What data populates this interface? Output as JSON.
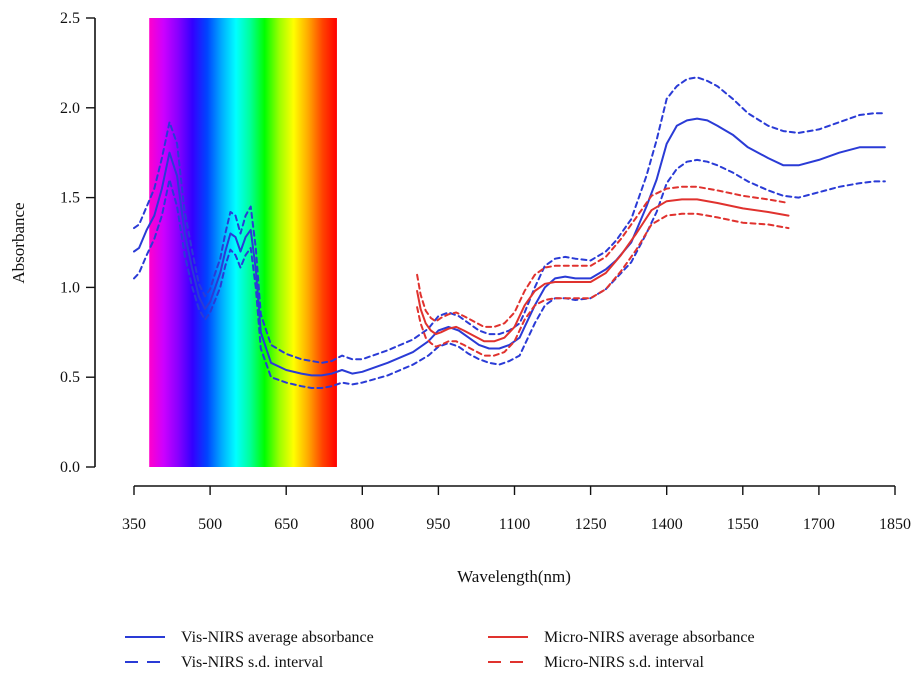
{
  "chart_data": {
    "type": "line",
    "xlabel": "Wavelength(nm)",
    "ylabel": "Absorbance",
    "xlim": [
      350,
      1850
    ],
    "ylim": [
      0,
      2.5
    ],
    "x_ticks": [
      350,
      500,
      650,
      800,
      950,
      1100,
      1250,
      1400,
      1550,
      1700,
      1850
    ],
    "y_ticks": [
      0.0,
      0.5,
      1.0,
      1.5,
      2.0,
      2.5
    ],
    "y_tick_labels": [
      "0.0",
      "0.5",
      "1.0",
      "1.5",
      "2.0",
      "2.5"
    ],
    "grid": false,
    "visible_spectrum_band": {
      "x_range": [
        380,
        750
      ],
      "colors": [
        "#ff00cc",
        "#cc00ff",
        "#8800ff",
        "#3300ff",
        "#0044ff",
        "#00aaff",
        "#00ffff",
        "#00ff99",
        "#00ff00",
        "#99ff00",
        "#ffff00",
        "#ffaa00",
        "#ff4400",
        "#ff0000"
      ]
    },
    "series": [
      {
        "name": "Vis-NIRS average absorbance",
        "color": "#2a3bd6",
        "dash": "solid",
        "x": [
          350,
          360,
          375,
          390,
          405,
          420,
          435,
          450,
          465,
          478,
          490,
          500,
          510,
          520,
          530,
          540,
          550,
          560,
          570,
          580,
          590,
          600,
          620,
          650,
          680,
          700,
          720,
          740,
          760,
          780,
          800,
          850,
          900,
          930,
          950,
          970,
          990,
          1010,
          1030,
          1050,
          1070,
          1090,
          1110,
          1120,
          1140,
          1160,
          1180,
          1200,
          1220,
          1250,
          1280,
          1300,
          1330,
          1360,
          1380,
          1400,
          1420,
          1440,
          1460,
          1480,
          1500,
          1530,
          1560,
          1600,
          1630,
          1660,
          1700,
          1740,
          1780,
          1810,
          1830
        ],
        "y": [
          1.2,
          1.22,
          1.32,
          1.4,
          1.55,
          1.75,
          1.62,
          1.3,
          1.1,
          0.95,
          0.88,
          0.92,
          1.0,
          1.08,
          1.2,
          1.3,
          1.28,
          1.2,
          1.28,
          1.32,
          1.1,
          0.75,
          0.58,
          0.54,
          0.52,
          0.51,
          0.51,
          0.52,
          0.54,
          0.52,
          0.53,
          0.58,
          0.64,
          0.7,
          0.76,
          0.78,
          0.76,
          0.72,
          0.68,
          0.66,
          0.66,
          0.68,
          0.72,
          0.78,
          0.9,
          1.0,
          1.05,
          1.06,
          1.05,
          1.05,
          1.1,
          1.15,
          1.25,
          1.45,
          1.6,
          1.8,
          1.9,
          1.93,
          1.94,
          1.93,
          1.9,
          1.85,
          1.78,
          1.72,
          1.68,
          1.68,
          1.71,
          1.75,
          1.78,
          1.78,
          1.78
        ]
      },
      {
        "name": "Vis-NIRS s.d. interval",
        "color": "#2a3bd6",
        "dash": "dashed",
        "x": [
          350,
          360,
          375,
          390,
          405,
          420,
          435,
          450,
          465,
          478,
          490,
          500,
          510,
          520,
          530,
          540,
          550,
          560,
          570,
          580,
          590,
          600,
          620,
          650,
          680,
          700,
          720,
          740,
          760,
          780,
          800,
          850,
          900,
          930,
          950,
          970,
          990,
          1010,
          1030,
          1050,
          1070,
          1090,
          1110,
          1120,
          1140,
          1160,
          1180,
          1200,
          1220,
          1250,
          1280,
          1300,
          1330,
          1360,
          1380,
          1400,
          1420,
          1440,
          1460,
          1480,
          1500,
          1530,
          1560,
          1600,
          1630,
          1660,
          1700,
          1740,
          1780,
          1810,
          1830
        ],
        "y": [
          1.33,
          1.35,
          1.45,
          1.55,
          1.72,
          1.92,
          1.8,
          1.42,
          1.2,
          1.02,
          0.95,
          0.99,
          1.08,
          1.16,
          1.3,
          1.42,
          1.4,
          1.3,
          1.4,
          1.45,
          1.22,
          0.85,
          0.68,
          0.63,
          0.6,
          0.59,
          0.58,
          0.59,
          0.62,
          0.6,
          0.6,
          0.65,
          0.71,
          0.77,
          0.84,
          0.86,
          0.84,
          0.8,
          0.76,
          0.74,
          0.74,
          0.76,
          0.8,
          0.86,
          1.0,
          1.12,
          1.16,
          1.17,
          1.16,
          1.15,
          1.2,
          1.26,
          1.38,
          1.62,
          1.82,
          2.05,
          2.12,
          2.16,
          2.17,
          2.15,
          2.12,
          2.05,
          1.97,
          1.9,
          1.87,
          1.86,
          1.88,
          1.92,
          1.96,
          1.97,
          1.97
        ],
        "lower": [
          1.05,
          1.08,
          1.18,
          1.27,
          1.4,
          1.6,
          1.45,
          1.18,
          1.0,
          0.88,
          0.82,
          0.86,
          0.93,
          1.0,
          1.12,
          1.21,
          1.18,
          1.11,
          1.18,
          1.22,
          1.0,
          0.66,
          0.5,
          0.47,
          0.45,
          0.44,
          0.44,
          0.45,
          0.47,
          0.46,
          0.47,
          0.51,
          0.57,
          0.62,
          0.67,
          0.69,
          0.67,
          0.63,
          0.6,
          0.58,
          0.57,
          0.59,
          0.62,
          0.68,
          0.8,
          0.9,
          0.94,
          0.94,
          0.93,
          0.94,
          0.99,
          1.05,
          1.14,
          1.3,
          1.42,
          1.58,
          1.66,
          1.7,
          1.71,
          1.7,
          1.68,
          1.64,
          1.59,
          1.54,
          1.51,
          1.5,
          1.53,
          1.56,
          1.58,
          1.59,
          1.59
        ]
      },
      {
        "name": "Micro-NIRS average absorbance",
        "color": "#e0322e",
        "dash": "solid",
        "x": [
          908,
          915,
          925,
          935,
          945,
          955,
          970,
          985,
          1000,
          1020,
          1040,
          1060,
          1080,
          1100,
          1120,
          1140,
          1160,
          1180,
          1200,
          1220,
          1250,
          1280,
          1310,
          1340,
          1370,
          1400,
          1430,
          1460,
          1500,
          1550,
          1600,
          1640
        ],
        "y": [
          0.98,
          0.88,
          0.8,
          0.76,
          0.74,
          0.75,
          0.77,
          0.78,
          0.76,
          0.73,
          0.7,
          0.7,
          0.72,
          0.78,
          0.9,
          0.98,
          1.02,
          1.03,
          1.03,
          1.03,
          1.03,
          1.08,
          1.18,
          1.3,
          1.43,
          1.48,
          1.49,
          1.49,
          1.47,
          1.44,
          1.42,
          1.4
        ]
      },
      {
        "name": "Micro-NIRS s.d. interval",
        "color": "#e0322e",
        "dash": "dashed",
        "x": [
          908,
          915,
          925,
          935,
          945,
          955,
          970,
          985,
          1000,
          1020,
          1040,
          1060,
          1080,
          1100,
          1120,
          1140,
          1160,
          1180,
          1200,
          1220,
          1250,
          1280,
          1310,
          1340,
          1370,
          1400,
          1430,
          1460,
          1500,
          1550,
          1600,
          1640
        ],
        "y": [
          1.07,
          0.96,
          0.87,
          0.83,
          0.81,
          0.83,
          0.85,
          0.86,
          0.84,
          0.81,
          0.78,
          0.78,
          0.8,
          0.86,
          0.98,
          1.07,
          1.11,
          1.12,
          1.12,
          1.12,
          1.12,
          1.17,
          1.27,
          1.39,
          1.51,
          1.55,
          1.56,
          1.56,
          1.54,
          1.51,
          1.49,
          1.47
        ],
        "lower": [
          0.89,
          0.8,
          0.72,
          0.69,
          0.67,
          0.68,
          0.7,
          0.7,
          0.68,
          0.65,
          0.62,
          0.62,
          0.64,
          0.7,
          0.82,
          0.9,
          0.93,
          0.94,
          0.94,
          0.94,
          0.94,
          0.99,
          1.09,
          1.21,
          1.35,
          1.4,
          1.41,
          1.41,
          1.39,
          1.36,
          1.35,
          1.33
        ]
      }
    ],
    "legend_position": "bottom"
  }
}
